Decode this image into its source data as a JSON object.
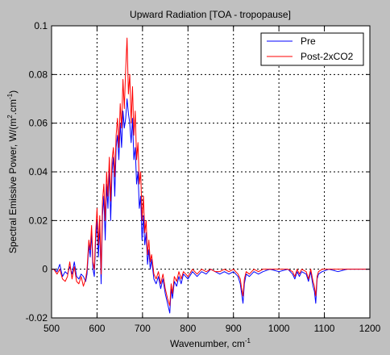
{
  "chart_data": {
    "type": "line",
    "title": "Upward Radiation [TOA - tropopause]",
    "xlabel": "Wavenumber, cm",
    "xlabel_sup": "-1",
    "ylabel_parts": [
      "Spectral Emissive Power, W/(m",
      "2",
      ".cm",
      "-1",
      ")"
    ],
    "xlim": [
      500,
      1200
    ],
    "ylim": [
      -0.02,
      0.1
    ],
    "x_ticks": [
      500,
      600,
      700,
      800,
      900,
      1000,
      1100,
      1200
    ],
    "x_tick_labels": [
      "500",
      "600",
      "700",
      "800",
      "900",
      "1000",
      "1100",
      "1200"
    ],
    "y_ticks": [
      -0.02,
      0,
      0.02,
      0.04,
      0.06,
      0.08,
      0.1
    ],
    "y_tick_labels": [
      "-0.02",
      "0",
      "0.02",
      "0.04",
      "0.06",
      "0.08",
      "0.1"
    ],
    "grid": true,
    "legend_position": "top-right",
    "series": [
      {
        "name": "Pre",
        "color": "#0000ff",
        "points": [
          [
            500,
            0.0
          ],
          [
            505,
            0.0
          ],
          [
            512,
            -0.001
          ],
          [
            518,
            0.002
          ],
          [
            524,
            -0.003
          ],
          [
            530,
            -0.001
          ],
          [
            535,
            -0.002
          ],
          [
            540,
            0.001
          ],
          [
            545,
            -0.002
          ],
          [
            550,
            0.003
          ],
          [
            555,
            -0.003
          ],
          [
            560,
            -0.004
          ],
          [
            565,
            -0.002
          ],
          [
            570,
            -0.003
          ],
          [
            575,
            -0.005
          ],
          [
            578,
            -0.002
          ],
          [
            582,
            0.01
          ],
          [
            585,
            0.005
          ],
          [
            588,
            0.015
          ],
          [
            591,
            0.0
          ],
          [
            594,
            -0.003
          ],
          [
            597,
            0.012
          ],
          [
            600,
            0.02
          ],
          [
            603,
            0.005
          ],
          [
            606,
            0.018
          ],
          [
            609,
            -0.006
          ],
          [
            612,
            0.022
          ],
          [
            615,
            0.03
          ],
          [
            618,
            0.012
          ],
          [
            621,
            0.035
          ],
          [
            624,
            0.025
          ],
          [
            627,
            0.042
          ],
          [
            630,
            0.02
          ],
          [
            633,
            0.04
          ],
          [
            636,
            0.046
          ],
          [
            639,
            0.03
          ],
          [
            642,
            0.05
          ],
          [
            645,
            0.055
          ],
          [
            648,
            0.045
          ],
          [
            651,
            0.06
          ],
          [
            654,
            0.05
          ],
          [
            657,
            0.065
          ],
          [
            660,
            0.058
          ],
          [
            663,
            0.062
          ],
          [
            666,
            0.07
          ],
          [
            669,
            0.064
          ],
          [
            672,
            0.06
          ],
          [
            675,
            0.052
          ],
          [
            678,
            0.062
          ],
          [
            681,
            0.045
          ],
          [
            684,
            0.05
          ],
          [
            687,
            0.035
          ],
          [
            690,
            0.04
          ],
          [
            693,
            0.025
          ],
          [
            696,
            0.03
          ],
          [
            699,
            0.012
          ],
          [
            702,
            0.022
          ],
          [
            705,
            0.01
          ],
          [
            708,
            0.015
          ],
          [
            711,
            0.002
          ],
          [
            714,
            0.008
          ],
          [
            717,
            0.0
          ],
          [
            720,
            0.004
          ],
          [
            725,
            -0.004
          ],
          [
            730,
            -0.006
          ],
          [
            735,
            -0.003
          ],
          [
            740,
            -0.008
          ],
          [
            745,
            -0.004
          ],
          [
            750,
            -0.01
          ],
          [
            755,
            -0.014
          ],
          [
            760,
            -0.018
          ],
          [
            763,
            -0.008
          ],
          [
            766,
            -0.012
          ],
          [
            770,
            -0.005
          ],
          [
            775,
            -0.007
          ],
          [
            780,
            -0.003
          ],
          [
            785,
            -0.006
          ],
          [
            790,
            -0.002
          ],
          [
            800,
            -0.004
          ],
          [
            810,
            -0.001
          ],
          [
            820,
            -0.003
          ],
          [
            830,
            -0.001
          ],
          [
            840,
            -0.002
          ],
          [
            850,
            0.0
          ],
          [
            860,
            -0.001
          ],
          [
            870,
            -0.002
          ],
          [
            880,
            -0.001
          ],
          [
            890,
            -0.002
          ],
          [
            900,
            -0.001
          ],
          [
            910,
            -0.003
          ],
          [
            915,
            -0.006
          ],
          [
            918,
            -0.01
          ],
          [
            921,
            -0.014
          ],
          [
            924,
            -0.006
          ],
          [
            928,
            -0.002
          ],
          [
            935,
            -0.003
          ],
          [
            945,
            -0.001
          ],
          [
            955,
            -0.002
          ],
          [
            965,
            -0.001
          ],
          [
            980,
            0.0
          ],
          [
            1000,
            -0.001
          ],
          [
            1020,
            0.0
          ],
          [
            1030,
            -0.002
          ],
          [
            1035,
            -0.004
          ],
          [
            1040,
            -0.001
          ],
          [
            1045,
            -0.003
          ],
          [
            1050,
            -0.001
          ],
          [
            1060,
            -0.002
          ],
          [
            1065,
            -0.005
          ],
          [
            1070,
            -0.001
          ],
          [
            1075,
            -0.007
          ],
          [
            1078,
            -0.009
          ],
          [
            1081,
            -0.014
          ],
          [
            1084,
            -0.004
          ],
          [
            1087,
            -0.002
          ],
          [
            1095,
            -0.001
          ],
          [
            1110,
            0.0
          ],
          [
            1130,
            -0.001
          ],
          [
            1150,
            0.0
          ],
          [
            1200,
            0.0
          ]
        ]
      },
      {
        "name": "Post-2xCO2",
        "color": "#ff0000",
        "points": [
          [
            500,
            0.0
          ],
          [
            505,
            0.0
          ],
          [
            512,
            -0.002
          ],
          [
            518,
            0.0
          ],
          [
            524,
            -0.004
          ],
          [
            530,
            -0.005
          ],
          [
            535,
            -0.003
          ],
          [
            540,
            0.003
          ],
          [
            545,
            -0.004
          ],
          [
            550,
            0.001
          ],
          [
            555,
            -0.005
          ],
          [
            560,
            -0.006
          ],
          [
            565,
            -0.003
          ],
          [
            570,
            -0.007
          ],
          [
            575,
            -0.004
          ],
          [
            578,
            0.0
          ],
          [
            582,
            0.012
          ],
          [
            585,
            0.008
          ],
          [
            588,
            0.018
          ],
          [
            591,
            0.003
          ],
          [
            594,
            0.0
          ],
          [
            597,
            0.015
          ],
          [
            600,
            0.025
          ],
          [
            603,
            0.01
          ],
          [
            606,
            0.022
          ],
          [
            609,
            -0.002
          ],
          [
            612,
            0.028
          ],
          [
            615,
            0.035
          ],
          [
            618,
            0.02
          ],
          [
            621,
            0.04
          ],
          [
            624,
            0.03
          ],
          [
            627,
            0.046
          ],
          [
            630,
            0.028
          ],
          [
            633,
            0.045
          ],
          [
            636,
            0.05
          ],
          [
            639,
            0.038
          ],
          [
            642,
            0.055
          ],
          [
            645,
            0.062
          ],
          [
            648,
            0.05
          ],
          [
            651,
            0.068
          ],
          [
            654,
            0.058
          ],
          [
            657,
            0.078
          ],
          [
            660,
            0.066
          ],
          [
            663,
            0.082
          ],
          [
            666,
            0.095
          ],
          [
            669,
            0.072
          ],
          [
            672,
            0.08
          ],
          [
            675,
            0.06
          ],
          [
            678,
            0.075
          ],
          [
            681,
            0.055
          ],
          [
            684,
            0.065
          ],
          [
            687,
            0.045
          ],
          [
            690,
            0.052
          ],
          [
            693,
            0.035
          ],
          [
            696,
            0.04
          ],
          [
            699,
            0.02
          ],
          [
            702,
            0.03
          ],
          [
            705,
            0.015
          ],
          [
            708,
            0.02
          ],
          [
            711,
            0.006
          ],
          [
            714,
            0.012
          ],
          [
            717,
            0.003
          ],
          [
            720,
            0.006
          ],
          [
            725,
            -0.002
          ],
          [
            730,
            -0.004
          ],
          [
            735,
            -0.001
          ],
          [
            740,
            -0.006
          ],
          [
            745,
            -0.002
          ],
          [
            750,
            -0.008
          ],
          [
            755,
            -0.012
          ],
          [
            760,
            -0.015
          ],
          [
            763,
            -0.006
          ],
          [
            766,
            -0.01
          ],
          [
            770,
            -0.003
          ],
          [
            775,
            -0.005
          ],
          [
            780,
            -0.001
          ],
          [
            785,
            -0.004
          ],
          [
            790,
            -0.001
          ],
          [
            800,
            -0.003
          ],
          [
            810,
            0.0
          ],
          [
            820,
            -0.002
          ],
          [
            830,
            0.0
          ],
          [
            840,
            -0.001
          ],
          [
            850,
            0.0
          ],
          [
            860,
            -0.001
          ],
          [
            870,
            -0.001
          ],
          [
            880,
            0.0
          ],
          [
            890,
            -0.001
          ],
          [
            900,
            0.0
          ],
          [
            910,
            -0.002
          ],
          [
            915,
            -0.004
          ],
          [
            918,
            -0.008
          ],
          [
            921,
            -0.011
          ],
          [
            924,
            -0.004
          ],
          [
            928,
            -0.001
          ],
          [
            935,
            -0.002
          ],
          [
            945,
            0.0
          ],
          [
            955,
            -0.001
          ],
          [
            965,
            0.0
          ],
          [
            980,
            0.0
          ],
          [
            1000,
            0.0
          ],
          [
            1020,
            0.0
          ],
          [
            1030,
            -0.001
          ],
          [
            1035,
            -0.003
          ],
          [
            1040,
            0.0
          ],
          [
            1045,
            -0.002
          ],
          [
            1050,
            0.0
          ],
          [
            1060,
            -0.001
          ],
          [
            1065,
            -0.004
          ],
          [
            1070,
            0.0
          ],
          [
            1075,
            -0.005
          ],
          [
            1078,
            -0.007
          ],
          [
            1081,
            -0.011
          ],
          [
            1084,
            -0.003
          ],
          [
            1087,
            -0.001
          ],
          [
            1095,
            0.0
          ],
          [
            1110,
            0.0
          ],
          [
            1130,
            0.0
          ],
          [
            1150,
            0.0
          ],
          [
            1200,
            0.0
          ]
        ]
      }
    ]
  }
}
